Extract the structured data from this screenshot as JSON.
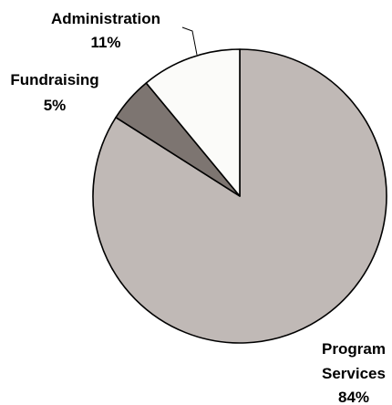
{
  "chart_data": {
    "type": "pie",
    "title": "",
    "slices": [
      {
        "label_lines": [
          "Program",
          "Services"
        ],
        "value": 84,
        "value_label": "84%",
        "color": "#c0b9b6"
      },
      {
        "label_lines": [
          "Fundraising"
        ],
        "value": 5,
        "value_label": "5%",
        "color": "#7d7571"
      },
      {
        "label_lines": [
          "Administration"
        ],
        "value": 11,
        "value_label": "11%",
        "color": "#fbfbf9"
      }
    ],
    "start_angle": "12 o'clock",
    "direction": "clockwise",
    "legend": "none",
    "data_labels": "outside with leader lines"
  }
}
